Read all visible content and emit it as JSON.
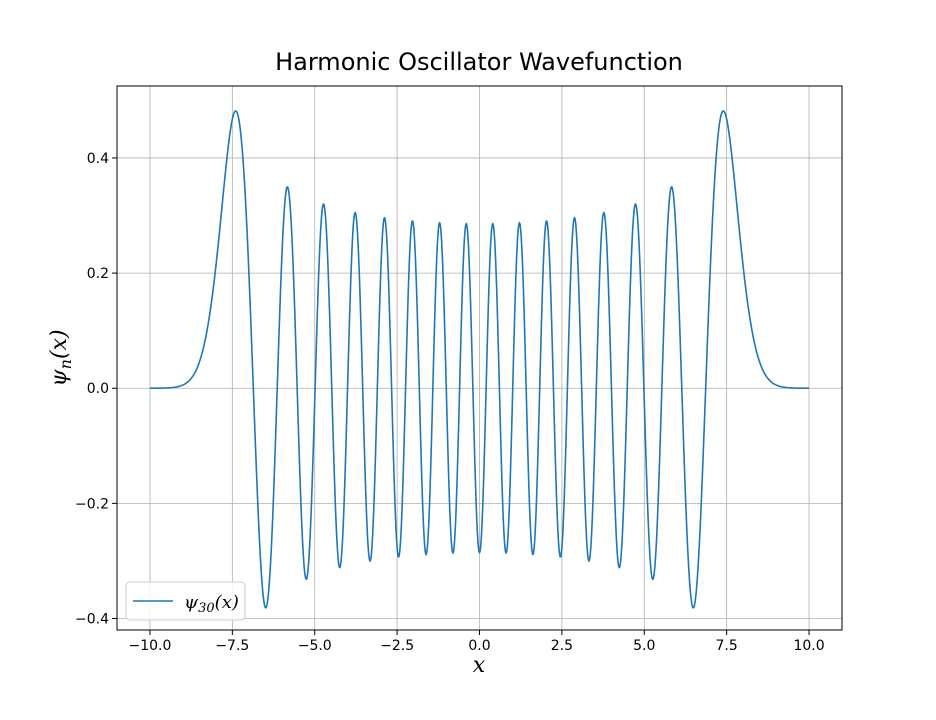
{
  "chart_data": {
    "type": "line",
    "title": "Harmonic Oscillator Wavefunction",
    "xlabel": "x",
    "ylabel": "ψn(x)",
    "ylabel_base": "ψ",
    "ylabel_sub": "n",
    "ylabel_rest": "(x)",
    "xlim": [
      -11,
      11
    ],
    "ylim": [
      -0.42,
      0.525
    ],
    "xticks": [
      -10.0,
      -7.5,
      -5.0,
      -2.5,
      0.0,
      2.5,
      5.0,
      7.5,
      10.0
    ],
    "xtick_labels": [
      "−10.0",
      "−7.5",
      "−5.0",
      "−2.5",
      "0.0",
      "2.5",
      "5.0",
      "7.5",
      "10.0"
    ],
    "yticks": [
      -0.4,
      -0.2,
      0.0,
      0.2,
      0.4
    ],
    "ytick_labels": [
      "−0.4",
      "−0.2",
      "0.0",
      "0.2",
      "0.4"
    ],
    "grid": true,
    "legend_position": "lower-left",
    "series": [
      {
        "name": "ψ30(x)",
        "name_base": "ψ",
        "name_sub": "30",
        "name_rest": "(x)",
        "color": "#1f77b4",
        "n": 30,
        "x_range": [
          -10,
          10
        ]
      }
    ]
  }
}
